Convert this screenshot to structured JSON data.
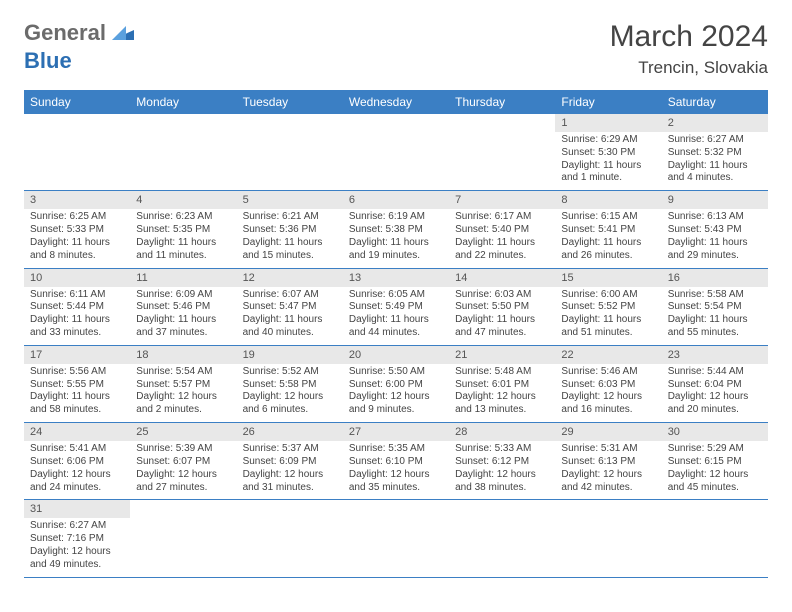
{
  "logo": {
    "text1": "General",
    "text2": "Blue"
  },
  "title": "March 2024",
  "location": "Trencin, Slovakia",
  "colors": {
    "headerBg": "#3b7fc4",
    "dayBg": "#e8e8e8",
    "text": "#444444"
  },
  "weekdays": [
    "Sunday",
    "Monday",
    "Tuesday",
    "Wednesday",
    "Thursday",
    "Friday",
    "Saturday"
  ],
  "weeks": [
    {
      "nums": [
        "",
        "",
        "",
        "",
        "",
        "1",
        "2"
      ],
      "cells": [
        null,
        null,
        null,
        null,
        null,
        {
          "sr": "Sunrise: 6:29 AM",
          "ss": "Sunset: 5:30 PM",
          "dl": "Daylight: 11 hours and 1 minute."
        },
        {
          "sr": "Sunrise: 6:27 AM",
          "ss": "Sunset: 5:32 PM",
          "dl": "Daylight: 11 hours and 4 minutes."
        }
      ]
    },
    {
      "nums": [
        "3",
        "4",
        "5",
        "6",
        "7",
        "8",
        "9"
      ],
      "cells": [
        {
          "sr": "Sunrise: 6:25 AM",
          "ss": "Sunset: 5:33 PM",
          "dl": "Daylight: 11 hours and 8 minutes."
        },
        {
          "sr": "Sunrise: 6:23 AM",
          "ss": "Sunset: 5:35 PM",
          "dl": "Daylight: 11 hours and 11 minutes."
        },
        {
          "sr": "Sunrise: 6:21 AM",
          "ss": "Sunset: 5:36 PM",
          "dl": "Daylight: 11 hours and 15 minutes."
        },
        {
          "sr": "Sunrise: 6:19 AM",
          "ss": "Sunset: 5:38 PM",
          "dl": "Daylight: 11 hours and 19 minutes."
        },
        {
          "sr": "Sunrise: 6:17 AM",
          "ss": "Sunset: 5:40 PM",
          "dl": "Daylight: 11 hours and 22 minutes."
        },
        {
          "sr": "Sunrise: 6:15 AM",
          "ss": "Sunset: 5:41 PM",
          "dl": "Daylight: 11 hours and 26 minutes."
        },
        {
          "sr": "Sunrise: 6:13 AM",
          "ss": "Sunset: 5:43 PM",
          "dl": "Daylight: 11 hours and 29 minutes."
        }
      ]
    },
    {
      "nums": [
        "10",
        "11",
        "12",
        "13",
        "14",
        "15",
        "16"
      ],
      "cells": [
        {
          "sr": "Sunrise: 6:11 AM",
          "ss": "Sunset: 5:44 PM",
          "dl": "Daylight: 11 hours and 33 minutes."
        },
        {
          "sr": "Sunrise: 6:09 AM",
          "ss": "Sunset: 5:46 PM",
          "dl": "Daylight: 11 hours and 37 minutes."
        },
        {
          "sr": "Sunrise: 6:07 AM",
          "ss": "Sunset: 5:47 PM",
          "dl": "Daylight: 11 hours and 40 minutes."
        },
        {
          "sr": "Sunrise: 6:05 AM",
          "ss": "Sunset: 5:49 PM",
          "dl": "Daylight: 11 hours and 44 minutes."
        },
        {
          "sr": "Sunrise: 6:03 AM",
          "ss": "Sunset: 5:50 PM",
          "dl": "Daylight: 11 hours and 47 minutes."
        },
        {
          "sr": "Sunrise: 6:00 AM",
          "ss": "Sunset: 5:52 PM",
          "dl": "Daylight: 11 hours and 51 minutes."
        },
        {
          "sr": "Sunrise: 5:58 AM",
          "ss": "Sunset: 5:54 PM",
          "dl": "Daylight: 11 hours and 55 minutes."
        }
      ]
    },
    {
      "nums": [
        "17",
        "18",
        "19",
        "20",
        "21",
        "22",
        "23"
      ],
      "cells": [
        {
          "sr": "Sunrise: 5:56 AM",
          "ss": "Sunset: 5:55 PM",
          "dl": "Daylight: 11 hours and 58 minutes."
        },
        {
          "sr": "Sunrise: 5:54 AM",
          "ss": "Sunset: 5:57 PM",
          "dl": "Daylight: 12 hours and 2 minutes."
        },
        {
          "sr": "Sunrise: 5:52 AM",
          "ss": "Sunset: 5:58 PM",
          "dl": "Daylight: 12 hours and 6 minutes."
        },
        {
          "sr": "Sunrise: 5:50 AM",
          "ss": "Sunset: 6:00 PM",
          "dl": "Daylight: 12 hours and 9 minutes."
        },
        {
          "sr": "Sunrise: 5:48 AM",
          "ss": "Sunset: 6:01 PM",
          "dl": "Daylight: 12 hours and 13 minutes."
        },
        {
          "sr": "Sunrise: 5:46 AM",
          "ss": "Sunset: 6:03 PM",
          "dl": "Daylight: 12 hours and 16 minutes."
        },
        {
          "sr": "Sunrise: 5:44 AM",
          "ss": "Sunset: 6:04 PM",
          "dl": "Daylight: 12 hours and 20 minutes."
        }
      ]
    },
    {
      "nums": [
        "24",
        "25",
        "26",
        "27",
        "28",
        "29",
        "30"
      ],
      "cells": [
        {
          "sr": "Sunrise: 5:41 AM",
          "ss": "Sunset: 6:06 PM",
          "dl": "Daylight: 12 hours and 24 minutes."
        },
        {
          "sr": "Sunrise: 5:39 AM",
          "ss": "Sunset: 6:07 PM",
          "dl": "Daylight: 12 hours and 27 minutes."
        },
        {
          "sr": "Sunrise: 5:37 AM",
          "ss": "Sunset: 6:09 PM",
          "dl": "Daylight: 12 hours and 31 minutes."
        },
        {
          "sr": "Sunrise: 5:35 AM",
          "ss": "Sunset: 6:10 PM",
          "dl": "Daylight: 12 hours and 35 minutes."
        },
        {
          "sr": "Sunrise: 5:33 AM",
          "ss": "Sunset: 6:12 PM",
          "dl": "Daylight: 12 hours and 38 minutes."
        },
        {
          "sr": "Sunrise: 5:31 AM",
          "ss": "Sunset: 6:13 PM",
          "dl": "Daylight: 12 hours and 42 minutes."
        },
        {
          "sr": "Sunrise: 5:29 AM",
          "ss": "Sunset: 6:15 PM",
          "dl": "Daylight: 12 hours and 45 minutes."
        }
      ]
    },
    {
      "nums": [
        "31",
        "",
        "",
        "",
        "",
        "",
        ""
      ],
      "cells": [
        {
          "sr": "Sunrise: 6:27 AM",
          "ss": "Sunset: 7:16 PM",
          "dl": "Daylight: 12 hours and 49 minutes."
        },
        null,
        null,
        null,
        null,
        null,
        null
      ]
    }
  ]
}
